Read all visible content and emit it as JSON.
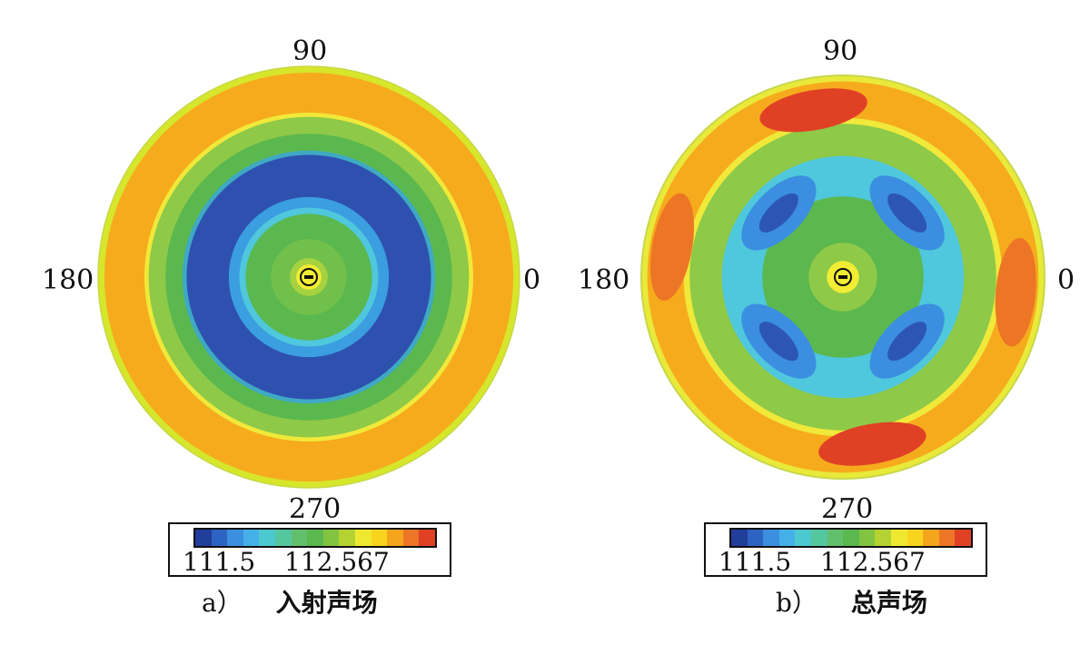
{
  "chart_data": [
    {
      "type": "polar-contour",
      "angle_labels": [
        "90",
        "0",
        "270",
        "180"
      ],
      "colorbar": {
        "tick_labels": [
          "111.5",
          "112.567"
        ],
        "colors": [
          "#213e9a",
          "#2d63c2",
          "#3b8ee0",
          "#45b0e8",
          "#4cc8cf",
          "#55c79f",
          "#62c06c",
          "#5bb84e",
          "#82c440",
          "#b5d233",
          "#eee930",
          "#f8d41e",
          "#f4a51c",
          "#ec7626",
          "#e04125"
        ]
      },
      "caption": {
        "index": "a）",
        "title": "入射声场"
      },
      "rings": [
        {
          "r": 1.0,
          "color": "#d6e62a"
        },
        {
          "r": 0.97,
          "color": "#f6ab1d"
        },
        {
          "r": 0.78,
          "color": "#f0e93a"
        },
        {
          "r": 0.76,
          "color": "#8ec948"
        },
        {
          "r": 0.68,
          "color": "#5bb84e"
        },
        {
          "r": 0.6,
          "color": "#3fa9c4"
        },
        {
          "r": 0.58,
          "color": "#2e51b0"
        },
        {
          "r": 0.38,
          "color": "#3b9ee0"
        },
        {
          "r": 0.33,
          "color": "#4fc7dc"
        },
        {
          "r": 0.3,
          "color": "#5bb84e"
        },
        {
          "r": 0.18,
          "color": "#72c04c"
        },
        {
          "r": 0.09,
          "color": "#a6d23f"
        },
        {
          "r": 0.06,
          "color": "#f2ec34"
        }
      ]
    },
    {
      "type": "polar-contour",
      "angle_labels": [
        "90",
        "0",
        "270",
        "180"
      ],
      "colorbar": {
        "tick_labels": [
          "111.5",
          "112.567"
        ],
        "colors": [
          "#213e9a",
          "#2d63c2",
          "#3b8ee0",
          "#45b0e8",
          "#4cc8cf",
          "#55c79f",
          "#62c06c",
          "#5bb84e",
          "#82c440",
          "#b5d233",
          "#eee930",
          "#f8d41e",
          "#f4a51c",
          "#ec7626",
          "#e04125"
        ]
      },
      "caption": {
        "index": "b）",
        "title": "总声场"
      },
      "rings": [
        {
          "r": 1.0,
          "color": "#e9e93a"
        },
        {
          "r": 0.97,
          "color": "#f6ab1d"
        },
        {
          "r": 0.79,
          "color": "#f0e93a"
        },
        {
          "r": 0.76,
          "color": "#8ec948"
        },
        {
          "r": 0.6,
          "color": "#4fc7dc"
        },
        {
          "r": 0.4,
          "color": "#5bb84e"
        },
        {
          "r": 0.2,
          "color": "#a6d23f"
        },
        {
          "r": 0.1,
          "color": "#f2ec34"
        }
      ],
      "hot_blobs": [
        {
          "angle": 100,
          "r": 0.84,
          "color": "#e04125"
        },
        {
          "angle": 280,
          "r": 0.84,
          "color": "#e04125"
        },
        {
          "angle": 170,
          "r": 0.86,
          "color": "#ec7626"
        },
        {
          "angle": 355,
          "r": 0.86,
          "color": "#ec7626"
        }
      ],
      "cold_blobs": [
        {
          "angle": 45,
          "r": 0.45
        },
        {
          "angle": 135,
          "r": 0.45
        },
        {
          "angle": 225,
          "r": 0.45
        },
        {
          "angle": 315,
          "r": 0.45
        }
      ]
    }
  ]
}
